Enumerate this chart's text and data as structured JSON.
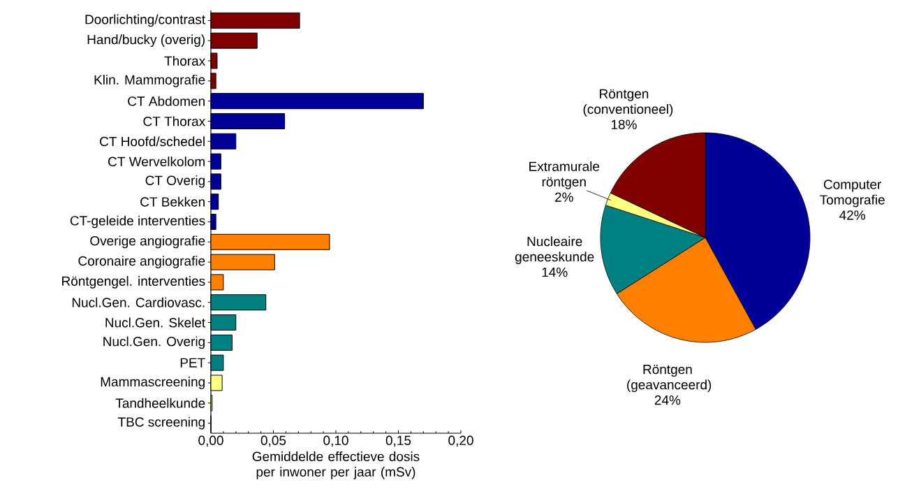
{
  "chart_data": [
    {
      "type": "bar",
      "orientation": "horizontal",
      "xlabel": "Gemiddelde effectieve dosis per inwoner per jaar (mSv)",
      "categories": [
        "Doorlichting/contrast",
        "Hand/bucky (overig)",
        "Thorax",
        "Klin. Mammografie",
        "CT Abdomen",
        "CT Thorax",
        "CT Hoofd/schedel",
        "CT Wervelkolom",
        "CT Overig",
        "CT Bekken",
        "CT-geleide interventies",
        "Overige angiografie",
        "Coronaire angiografie",
        "Röntgengel. interventies",
        "Nucl.Gen. Cardiovasc.",
        "Nucl.Gen. Skelet",
        "Nucl.Gen. Overig",
        "PET",
        "Mammascreening",
        "Tandheelkunde",
        "TBC screening"
      ],
      "values": [
        0.071,
        0.037,
        0.005,
        0.004,
        0.17,
        0.059,
        0.02,
        0.008,
        0.008,
        0.006,
        0.004,
        0.095,
        0.051,
        0.01,
        0.044,
        0.02,
        0.017,
        0.01,
        0.009,
        0.001,
        0
      ],
      "colors": [
        "#800000",
        "#800000",
        "#800000",
        "#800000",
        "#000099",
        "#000099",
        "#000099",
        "#000099",
        "#000099",
        "#000099",
        "#000099",
        "#ff8000",
        "#ff8000",
        "#ff8000",
        "#008080",
        "#008080",
        "#008080",
        "#008080",
        "#ffff80",
        "#ffff80",
        "#ffff80"
      ],
      "xlim": [
        0,
        0.2
      ],
      "xticks": [
        {
          "value": 0,
          "label": "0,00"
        },
        {
          "value": 0.05,
          "label": "0,05"
        },
        {
          "value": 0.1,
          "label": "0,10"
        },
        {
          "value": 0.15,
          "label": "0,15"
        },
        {
          "value": 0.2,
          "label": "0,20"
        }
      ]
    },
    {
      "type": "pie",
      "categories": [
        "Computer Tomografie",
        "Röntgen (geavanceerd)",
        "Nucleaire geneeskunde",
        "Extramurale röntgen",
        "Röntgen (conventioneel)"
      ],
      "values": [
        42,
        24,
        14,
        2,
        18
      ],
      "value_labels": [
        "42%",
        "24%",
        "14%",
        "2%",
        "18%"
      ],
      "colors": [
        "#000099",
        "#ff8000",
        "#008080",
        "#ffff80",
        "#800000"
      ]
    }
  ]
}
